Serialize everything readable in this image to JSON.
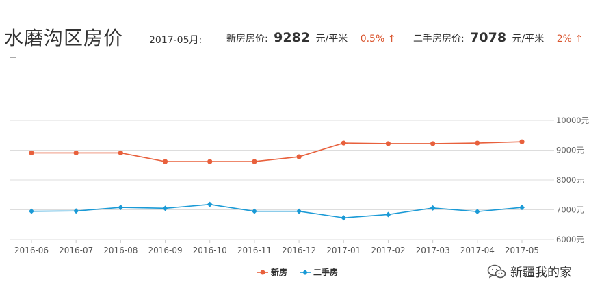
{
  "page": {
    "title": "水磨沟区房价",
    "date_label": "2017-05月:",
    "new_label": "新房房价:",
    "new_price": "9282",
    "new_unit": "元/平米",
    "new_change": "0.5% ↑",
    "used_label": "二手房房价:",
    "used_price": "7078",
    "used_unit": "元/平米",
    "used_change": "2% ↑",
    "watermark": "新疆我的家"
  },
  "colors": {
    "new": "#e8603c",
    "used": "#1a9ad6",
    "up": "#d9532c",
    "grid": "#dddddd"
  },
  "icons": {
    "table": "table-icon",
    "watermark": "wechat-icon"
  },
  "chart_data": {
    "type": "line",
    "categories": [
      "2016-06",
      "2016-07",
      "2016-08",
      "2016-09",
      "2016-10",
      "2016-11",
      "2016-12",
      "2017-01",
      "2017-02",
      "2017-03",
      "2017-04",
      "2017-05"
    ],
    "series": [
      {
        "name": "新房",
        "values": [
          8910,
          8910,
          8910,
          8620,
          8620,
          8620,
          8780,
          9240,
          9220,
          9220,
          9240,
          9282
        ]
      },
      {
        "name": "二手房",
        "values": [
          6950,
          6960,
          7080,
          7050,
          7180,
          6950,
          6950,
          6730,
          6840,
          7060,
          6940,
          7078
        ]
      }
    ],
    "yticks": [
      "10000元",
      "9000元",
      "8000元",
      "7000元",
      "6000元"
    ],
    "ytick_values": [
      10000,
      9000,
      8000,
      7000,
      6000
    ],
    "ylim": [
      6000,
      10000
    ],
    "grid": true,
    "legend_position": "bottom-center"
  }
}
